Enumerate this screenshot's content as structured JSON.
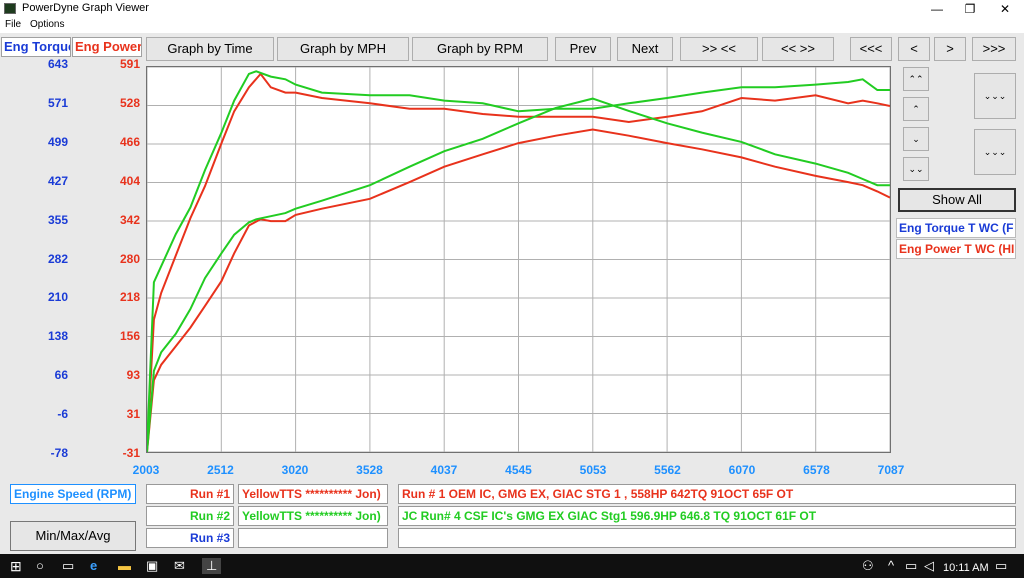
{
  "window": {
    "title": "PowerDyne Graph Viewer",
    "min": "—",
    "restore": "❐",
    "close": "✕"
  },
  "menu": {
    "file": "File",
    "options": "Options"
  },
  "axes": {
    "torque_header": "Eng Torque",
    "power_header": "Eng Power",
    "torque_ticks": [
      "643",
      "571",
      "499",
      "427",
      "355",
      "282",
      "210",
      "138",
      "66",
      "-6",
      "-78"
    ],
    "power_ticks": [
      "591",
      "528",
      "466",
      "404",
      "342",
      "280",
      "218",
      "156",
      "93",
      "31",
      "-31"
    ],
    "x_ticks": [
      "2003",
      "2512",
      "3020",
      "3528",
      "4037",
      "4545",
      "5053",
      "5562",
      "6070",
      "6578",
      "7087"
    ],
    "x_label": "Engine Speed (RPM)",
    "torque_color": "#1a3bd6",
    "power_color": "#e8321c"
  },
  "toolbar": {
    "by_time": "Graph by Time",
    "by_mph": "Graph by MPH",
    "by_rpm": "Graph by RPM",
    "prev": "Prev",
    "next": "Next",
    "zoom_in": ">> <<",
    "zoom_out": "<< >>",
    "far_left": "<<<",
    "left": "<",
    "right": ">",
    "far_right": ">>>"
  },
  "side": {
    "up_up": "⌃⌃",
    "up": "⌃",
    "down": "⌄",
    "down_down": "⌄⌄",
    "big_down_a": "⌄⌄⌄",
    "big_down_b": "⌄⌄⌄",
    "show_all": "Show All",
    "legend_torque": "Eng Torque T WC (F",
    "legend_power": "Eng Power T WC (HI"
  },
  "runs": [
    {
      "label": "Run #1",
      "name": "YellowTTS ********** Jon)",
      "desc": "Run # 1 OEM IC, GMG EX, GIAC STG 1 , 558HP 642TQ 91OCT 65F OT",
      "color": "#e8321c"
    },
    {
      "label": "Run #2",
      "name": "YellowTTS ********** Jon)",
      "desc": "JC Run# 4 CSF IC's GMG EX GIAC Stg1 596.9HP 646.8 TQ 91OCT 61F OT",
      "color": "#22cc22"
    },
    {
      "label": "Run #3",
      "name": "",
      "desc": "",
      "color": "#1a3bd6"
    }
  ],
  "min_max_avg": "Min/Max/Avg",
  "taskbar": {
    "time": "10:11 AM"
  },
  "chart_data": {
    "type": "line",
    "x_label": "Engine Speed (RPM)",
    "xlim": [
      2003,
      7087
    ],
    "y_left_label": "Eng Torque",
    "y_left_lim": [
      -78,
      643
    ],
    "y_right_label": "Eng Power",
    "y_right_lim": [
      -31,
      591
    ],
    "series": [
      {
        "name": "Run #1 Eng Torque",
        "axis": "torque",
        "color": "#e8321c",
        "x": [
          2003,
          2050,
          2100,
          2200,
          2300,
          2400,
          2512,
          2600,
          2700,
          2780,
          2850,
          2950,
          3020,
          3200,
          3528,
          3800,
          4037,
          4300,
          4545,
          4800,
          5053,
          5300,
          5562,
          5800,
          6070,
          6300,
          6578,
          6800,
          6900,
          7000,
          7087
        ],
        "y": [
          -70,
          170,
          220,
          290,
          360,
          420,
          500,
          560,
          605,
          630,
          605,
          595,
          595,
          585,
          575,
          565,
          565,
          555,
          550,
          550,
          550,
          540,
          550,
          560,
          585,
          580,
          590,
          575,
          580,
          575,
          570
        ]
      },
      {
        "name": "Run #2 Eng Torque",
        "axis": "torque",
        "color": "#22cc22",
        "x": [
          2003,
          2050,
          2100,
          2200,
          2300,
          2400,
          2512,
          2600,
          2700,
          2750,
          2850,
          2950,
          3020,
          3200,
          3528,
          3800,
          4037,
          4300,
          4545,
          4800,
          5053,
          5300,
          5562,
          5800,
          6070,
          6300,
          6578,
          6800,
          6900,
          7000,
          7087
        ],
        "y": [
          -70,
          240,
          270,
          330,
          380,
          450,
          520,
          580,
          630,
          635,
          625,
          620,
          610,
          595,
          590,
          590,
          580,
          575,
          560,
          565,
          565,
          575,
          585,
          595,
          605,
          605,
          610,
          615,
          620,
          600,
          600
        ]
      },
      {
        "name": "Run #1 Eng Power",
        "axis": "power",
        "color": "#e8321c",
        "x": [
          2003,
          2050,
          2100,
          2200,
          2300,
          2400,
          2512,
          2600,
          2700,
          2780,
          2850,
          2950,
          3020,
          3200,
          3528,
          3800,
          4037,
          4300,
          4545,
          4800,
          5053,
          5300,
          5562,
          5800,
          6070,
          6300,
          6578,
          6800,
          6900,
          7000,
          7087
        ],
        "y": [
          -31,
          85,
          110,
          140,
          170,
          205,
          245,
          290,
          335,
          345,
          342,
          342,
          352,
          362,
          378,
          405,
          430,
          450,
          468,
          480,
          490,
          480,
          468,
          458,
          445,
          430,
          415,
          405,
          400,
          390,
          380
        ]
      },
      {
        "name": "Run #2 Eng Power",
        "axis": "power",
        "color": "#22cc22",
        "x": [
          2003,
          2050,
          2100,
          2200,
          2300,
          2400,
          2512,
          2600,
          2700,
          2750,
          2850,
          2950,
          3020,
          3200,
          3528,
          3800,
          4037,
          4300,
          4545,
          4800,
          5053,
          5300,
          5562,
          5800,
          6070,
          6300,
          6578,
          6800,
          6900,
          7000,
          7087
        ],
        "y": [
          -31,
          100,
          130,
          160,
          200,
          250,
          290,
          320,
          340,
          345,
          350,
          355,
          362,
          375,
          400,
          430,
          455,
          475,
          500,
          525,
          540,
          520,
          500,
          485,
          470,
          450,
          435,
          420,
          410,
          400,
          400
        ]
      }
    ]
  }
}
